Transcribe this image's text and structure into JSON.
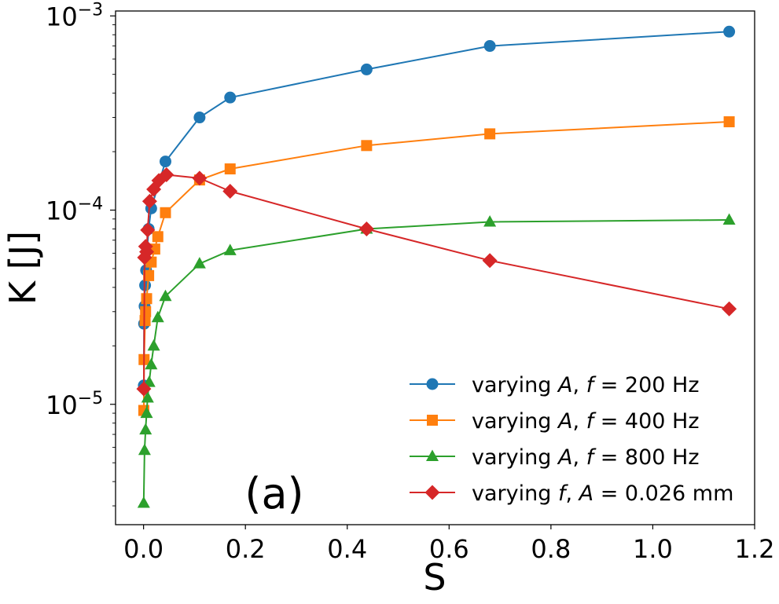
{
  "chart_data": {
    "type": "line",
    "yscale": "log",
    "xlabel": "S",
    "ylabel": "K [J]",
    "xlim": [
      -0.055,
      1.2
    ],
    "ylim": [
      2.4e-06,
      0.00106
    ],
    "xticks": [
      0.0,
      0.2,
      0.4,
      0.6,
      0.8,
      1.0,
      1.2
    ],
    "xtick_labels": [
      "0.0",
      "0.2",
      "0.4",
      "0.6",
      "0.8",
      "1.0",
      "1.2"
    ],
    "yticks": [
      1e-05,
      0.0001,
      0.001
    ],
    "ytick_labels": [
      {
        "base": "10",
        "exp": "−5"
      },
      {
        "base": "10",
        "exp": "−4"
      },
      {
        "base": "10",
        "exp": "−3"
      }
    ],
    "annotation": "(a)",
    "legend_position": "lower-right",
    "series": [
      {
        "name": "varying A, f = 200 Hz",
        "legend": {
          "pre": "varying ",
          "var": "A",
          "mid": ", ",
          "var2": "f",
          "post": " = 200 Hz"
        },
        "color": "#1f77b4",
        "marker": "circle",
        "x": [
          0.0005,
          0.001,
          0.002,
          0.003,
          0.005,
          0.007,
          0.01,
          0.015,
          0.043,
          0.11,
          0.17,
          0.438,
          0.68,
          1.15
        ],
        "y": [
          1.25e-05,
          2.6e-05,
          3.2e-05,
          4.1e-05,
          4.9e-05,
          6.2e-05,
          8e-05,
          0.000102,
          0.000178,
          0.0003,
          0.00038,
          0.00053,
          0.0007,
          0.00083
        ]
      },
      {
        "name": "varying A, f = 400 Hz",
        "legend": {
          "pre": "varying ",
          "var": "A",
          "mid": ", ",
          "var2": "f",
          "post": " = 400 Hz"
        },
        "color": "#ff7f0e",
        "marker": "square",
        "x": [
          0.0005,
          0.001,
          0.003,
          0.004,
          0.006,
          0.01,
          0.015,
          0.022,
          0.028,
          0.043,
          0.11,
          0.17,
          0.438,
          0.68,
          1.15
        ],
        "y": [
          9.3e-06,
          1.7e-05,
          2.7e-05,
          3e-05,
          3.5e-05,
          4.6e-05,
          5.4e-05,
          6.3e-05,
          7.3e-05,
          9.7e-05,
          0.000143,
          0.000163,
          0.000215,
          0.000247,
          0.000285
        ]
      },
      {
        "name": "varying A, f = 800 Hz",
        "legend": {
          "pre": "varying ",
          "var": "A",
          "mid": ", ",
          "var2": "f",
          "post": " = 800 Hz"
        },
        "color": "#2ca02c",
        "marker": "triangle",
        "x": [
          0.0003,
          0.002,
          0.004,
          0.006,
          0.008,
          0.011,
          0.015,
          0.02,
          0.028,
          0.043,
          0.11,
          0.17,
          0.438,
          0.68,
          1.15
        ],
        "y": [
          3.1e-06,
          5.8e-06,
          7.4e-06,
          9e-06,
          1.08e-05,
          1.3e-05,
          1.6e-05,
          2e-05,
          2.8e-05,
          3.6e-05,
          5.3e-05,
          6.2e-05,
          8e-05,
          8.7e-05,
          8.9e-05
        ]
      },
      {
        "name": "varying f, A = 0.026 mm",
        "legend": {
          "pre": "varying ",
          "var": "f",
          "mid": ", ",
          "var2": "A",
          "post": " = 0.026 mm"
        },
        "color": "#d62728",
        "marker": "diamond",
        "x": [
          0.0005,
          0.002,
          0.004,
          0.006,
          0.008,
          0.012,
          0.02,
          0.03,
          0.045,
          0.11,
          0.17,
          0.438,
          0.68,
          1.15
        ],
        "y": [
          1.2e-05,
          5.7e-05,
          6.5e-05,
          6.1e-05,
          7.9e-05,
          0.000111,
          0.000128,
          0.000142,
          0.000152,
          0.000146,
          0.000125,
          8e-05,
          5.5e-05,
          3.1e-05
        ]
      }
    ]
  }
}
